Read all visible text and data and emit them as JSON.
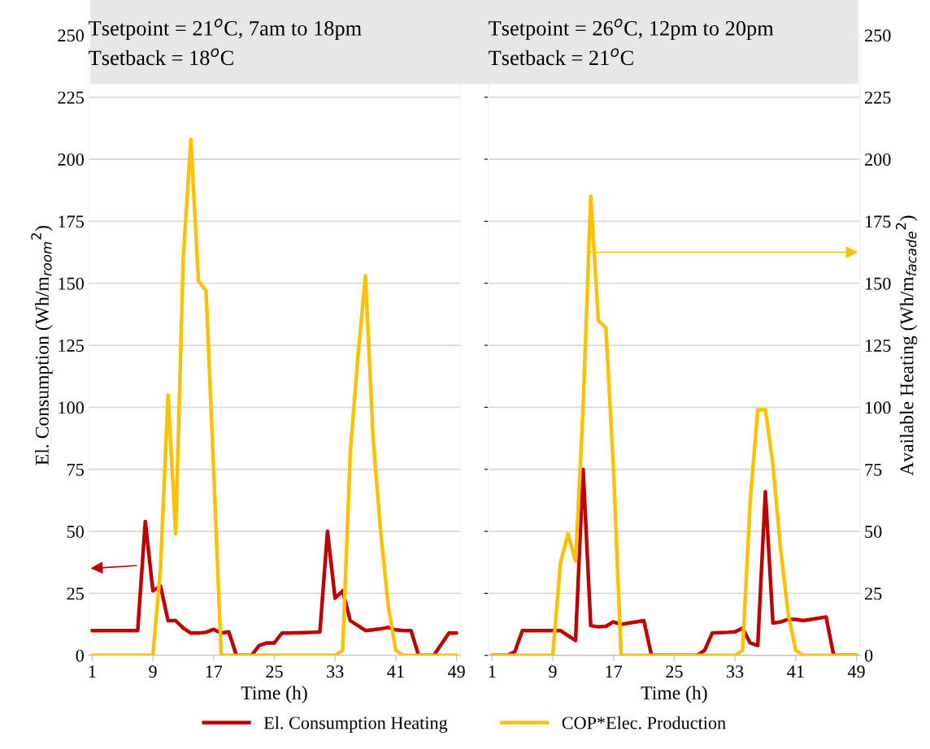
{
  "chart_data": [
    {
      "type": "line",
      "xlabel": "Time (h)",
      "ylabel": "El. Consumption (Wh/m$_{room}$$^{2}$)",
      "annotations": [
        "Tsetpoint = 21$^{o}$C, 7am to 18pm",
        "Tsetback = 18$^{o}$C"
      ],
      "x": [
        1,
        2,
        3,
        4,
        5,
        6,
        7,
        8,
        9,
        10,
        11,
        12,
        13,
        14,
        15,
        16,
        17,
        18,
        19,
        20,
        21,
        22,
        23,
        24,
        25,
        26,
        27,
        28,
        29,
        30,
        31,
        32,
        33,
        34,
        35,
        36,
        37,
        38,
        39,
        40,
        41,
        42,
        43,
        44,
        45,
        46,
        47,
        48,
        49
      ],
      "series": [
        {
          "name": "El. Consumption Heating",
          "color": "#c00000",
          "values": [
            10,
            10,
            10,
            10,
            10,
            10,
            10,
            54,
            26,
            28,
            14,
            14,
            11,
            9,
            9,
            9.3,
            10.5,
            9,
            9.5,
            0,
            0,
            0,
            4,
            5,
            5,
            9,
            9,
            9.1,
            9.2,
            9.3,
            9.4,
            50,
            23,
            26,
            14,
            12,
            10,
            10.3,
            10.7,
            11.3,
            10.3,
            10,
            10,
            0,
            0,
            0,
            4.5,
            9,
            9
          ]
        },
        {
          "name": "COP*Elec. Production",
          "color": "#ffc000",
          "values": [
            0,
            0,
            0,
            0,
            0,
            0,
            0,
            0,
            0,
            35,
            105,
            49,
            160,
            208,
            151,
            147,
            75,
            0,
            0,
            0,
            0,
            0,
            0,
            0,
            0,
            0,
            0,
            0,
            0,
            0,
            0,
            0,
            0,
            2,
            82,
            120,
            153,
            88,
            50,
            20,
            2,
            0,
            0,
            0,
            0,
            0,
            0,
            0,
            0
          ]
        }
      ],
      "xlim": [
        0.5,
        49.5
      ],
      "xticks": [
        1,
        9,
        17,
        25,
        33,
        41,
        49
      ],
      "ylim": [
        0,
        250
      ],
      "yticks": [
        0,
        25,
        50,
        75,
        100,
        125,
        150,
        175,
        200,
        225,
        250
      ],
      "grid": "y",
      "legend": "bottom",
      "line_style": "solid",
      "marker": "none"
    },
    {
      "type": "line",
      "xlabel": "Time (h)",
      "y2label": "Available Heating (Wh/m$_{facade}$$^{2}$)",
      "annotations": [
        "Tsetpoint = 26$^{o}$C, 12pm to 20pm",
        "Tsetback = 21$^{o}$C"
      ],
      "x": [
        1,
        2,
        3,
        4,
        5,
        6,
        7,
        8,
        9,
        10,
        11,
        12,
        13,
        14,
        15,
        16,
        17,
        18,
        19,
        20,
        21,
        22,
        23,
        24,
        25,
        26,
        27,
        28,
        29,
        30,
        31,
        32,
        33,
        34,
        35,
        36,
        37,
        38,
        39,
        40,
        41,
        42,
        43,
        44,
        45,
        46,
        47,
        48,
        49
      ],
      "series": [
        {
          "color": "#c00000",
          "axis": "y2",
          "values": [
            0,
            0,
            0,
            1.5,
            10,
            10,
            10,
            10,
            10,
            10,
            8,
            6,
            75,
            12,
            11.5,
            11.7,
            13.5,
            12.5,
            13,
            13.5,
            14,
            0,
            0,
            0,
            0,
            0,
            0,
            0,
            2,
            9,
            9.2,
            9.3,
            9.5,
            11,
            5,
            4,
            66,
            13,
            13.5,
            14.5,
            14.5,
            14,
            14.5,
            15,
            15.5,
            0,
            0,
            0,
            0
          ]
        },
        {
          "color": "#ffc000",
          "axis": "y2",
          "values": [
            0,
            0,
            0,
            0,
            0,
            0,
            0,
            0,
            0,
            37,
            49,
            38,
            100,
            185,
            135,
            132,
            75,
            0,
            0,
            0,
            0,
            0,
            0,
            0,
            0,
            0,
            0,
            0,
            0,
            0,
            0,
            0,
            0,
            2,
            62,
            99,
            99,
            77,
            43,
            17,
            2,
            0,
            0,
            0,
            0,
            0,
            0,
            0,
            0
          ]
        }
      ],
      "xlim": [
        0.5,
        49.5
      ],
      "xticks": [
        1,
        9,
        17,
        25,
        33,
        41,
        49
      ],
      "y2lim": [
        0,
        250
      ],
      "y2ticks": [
        0,
        25,
        50,
        75,
        100,
        125,
        150,
        175,
        200,
        225,
        250
      ],
      "grid": "y",
      "line_style": "solid",
      "marker": "none"
    }
  ]
}
